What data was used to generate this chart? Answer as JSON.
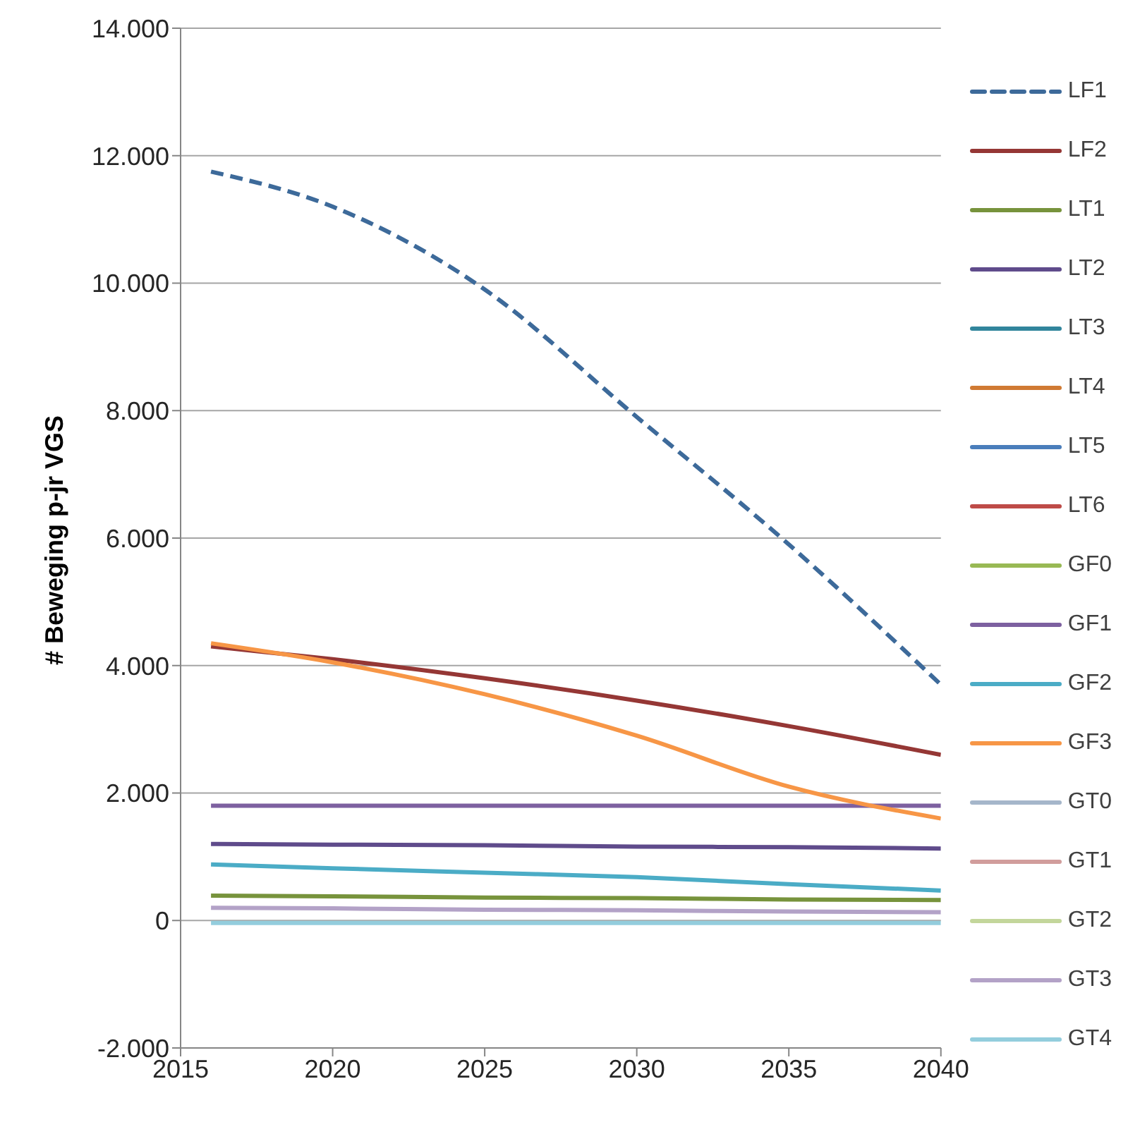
{
  "chart_data": {
    "type": "line",
    "ylabel": "# Beweging p-jr VGS",
    "xlim": [
      2015,
      2040
    ],
    "xticks": [
      2015,
      2020,
      2025,
      2030,
      2035,
      2040
    ],
    "ylim": [
      -2000,
      14000
    ],
    "yticks": [
      {
        "value": -2000,
        "label": "-2.000"
      },
      {
        "value": 0,
        "label": "0"
      },
      {
        "value": 2000,
        "label": "2.000"
      },
      {
        "value": 4000,
        "label": "4.000"
      },
      {
        "value": 6000,
        "label": "6.000"
      },
      {
        "value": 8000,
        "label": "8.000"
      },
      {
        "value": 10000,
        "label": "10.000"
      },
      {
        "value": 12000,
        "label": "12.000"
      },
      {
        "value": 14000,
        "label": "14.000"
      }
    ],
    "grid": "y",
    "legend": "right",
    "marker": "none",
    "x": [
      2016,
      2020,
      2025,
      2030,
      2035,
      2040
    ],
    "series": [
      {
        "name": "LF1",
        "color": "#3d6a9a",
        "line_style": "dashed",
        "values": [
          11750,
          11200,
          9900,
          7900,
          5900,
          3700
        ]
      },
      {
        "name": "LF2",
        "color": "#953735",
        "values": [
          4300,
          4100,
          3800,
          3450,
          3050,
          2600
        ]
      },
      {
        "name": "LT1",
        "color": "#77933c",
        "values": [
          390,
          380,
          360,
          350,
          330,
          320
        ]
      },
      {
        "name": "LT2",
        "color": "#5f4b8b",
        "values": [
          1200,
          1190,
          1180,
          1160,
          1150,
          1130
        ]
      },
      {
        "name": "LT3",
        "color": "#31859c",
        "values": [
          null,
          null,
          null,
          null,
          null,
          null
        ]
      },
      {
        "name": "LT4",
        "color": "#d07a33",
        "values": [
          null,
          null,
          null,
          null,
          null,
          null
        ]
      },
      {
        "name": "LT5",
        "color": "#4a7ebb",
        "values": [
          null,
          null,
          null,
          null,
          null,
          null
        ]
      },
      {
        "name": "LT6",
        "color": "#be4b48",
        "values": [
          null,
          null,
          null,
          null,
          null,
          null
        ]
      },
      {
        "name": "GF0",
        "color": "#98b954",
        "values": [
          null,
          null,
          null,
          null,
          null,
          null
        ]
      },
      {
        "name": "GF1",
        "color": "#7d60a0",
        "values": [
          1800,
          1800,
          1800,
          1800,
          1800,
          1800
        ]
      },
      {
        "name": "GF2",
        "color": "#4bacc6",
        "values": [
          880,
          820,
          750,
          680,
          570,
          470
        ]
      },
      {
        "name": "GF3",
        "color": "#f79646",
        "values": [
          4350,
          4050,
          3550,
          2900,
          2100,
          1600
        ]
      },
      {
        "name": "GT0",
        "color": "#a5b6ca",
        "values": [
          null,
          null,
          null,
          null,
          null,
          null
        ]
      },
      {
        "name": "GT1",
        "color": "#d19d9c",
        "values": [
          null,
          null,
          null,
          null,
          null,
          null
        ]
      },
      {
        "name": "GT2",
        "color": "#c3d69b",
        "values": [
          null,
          null,
          null,
          null,
          null,
          null
        ]
      },
      {
        "name": "GT3",
        "color": "#b3a2c7",
        "values": [
          200,
          190,
          170,
          160,
          140,
          130
        ]
      },
      {
        "name": "GT4",
        "color": "#93cddd",
        "values": [
          -40,
          -40,
          -40,
          -40,
          -40,
          -40
        ]
      }
    ]
  }
}
